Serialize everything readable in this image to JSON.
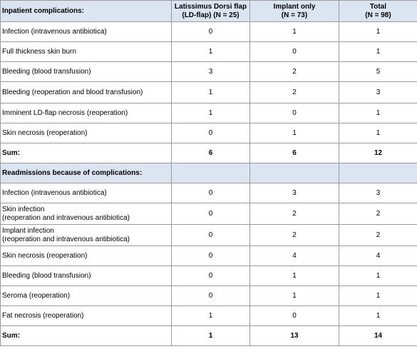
{
  "columns": {
    "section1": "Inpatient complications:",
    "ld_line1": "Latissimus Dorsi flap",
    "ld_line2": "(LD-flap) (N = 25)",
    "implant_line1": "Implant only",
    "implant_line2": "(N = 73)",
    "total_line1": "Total",
    "total_line2": "(N = 98)"
  },
  "inpatient": [
    {
      "label": "Infection (intravenous antibiotica)",
      "ld": "0",
      "implant": "1",
      "total": "1"
    },
    {
      "label": "Full thickness skin burn",
      "ld": "1",
      "implant": "0",
      "total": "1"
    },
    {
      "label": "Bleeding (blood transfusion)",
      "ld": "3",
      "implant": "2",
      "total": "5"
    },
    {
      "label": "Bleeding (reoperation and blood transfusion)",
      "ld": "1",
      "implant": "2",
      "total": "3"
    },
    {
      "label": "Imminent LD-flap necrosis (reoperation)",
      "ld": "1",
      "implant": "0",
      "total": "1"
    },
    {
      "label": "Skin necrosis (reoperation)",
      "ld": "0",
      "implant": "1",
      "total": "1"
    }
  ],
  "inpatient_sum": {
    "label": "Sum:",
    "ld": "6",
    "implant": "6",
    "total": "12"
  },
  "section2": "Readmissions because of complications:",
  "readmissions": [
    {
      "label": "Infection (intravenous antibiotica)",
      "ld": "0",
      "implant": "3",
      "total": "3"
    },
    {
      "label1": "Skin infection",
      "label2": "(reoperation and intravenous antibiotica)",
      "ld": "0",
      "implant": "2",
      "total": "2"
    },
    {
      "label1": "Implant infection",
      "label2": "(reoperation and intravenous antibiotica)",
      "ld": "0",
      "implant": "2",
      "total": "2"
    },
    {
      "label": "Skin necrosis (reoperation)",
      "ld": "0",
      "implant": "4",
      "total": "4"
    },
    {
      "label": "Bleeding (blood transfusion)",
      "ld": "0",
      "implant": "1",
      "total": "1"
    },
    {
      "label": "Seroma (reoperation)",
      "ld": "0",
      "implant": "1",
      "total": "1"
    },
    {
      "label": "Fat necrosis (reoperation)",
      "ld": "1",
      "implant": "0",
      "total": "1"
    }
  ],
  "readmissions_sum": {
    "label": "Sum:",
    "ld": "1",
    "implant": "13",
    "total": "14"
  }
}
